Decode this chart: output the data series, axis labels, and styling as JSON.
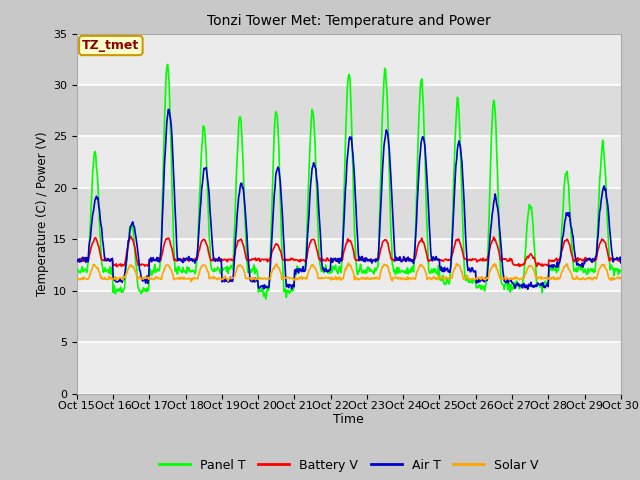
{
  "title": "Tonzi Tower Met: Temperature and Power",
  "xlabel": "Time",
  "ylabel": "Temperature (C) / Power (V)",
  "ylim": [
    0,
    35
  ],
  "yticks": [
    0,
    5,
    10,
    15,
    20,
    25,
    30,
    35
  ],
  "x_tick_labels": [
    "Oct 15",
    "Oct 16",
    "Oct 17",
    "Oct 18",
    "Oct 19",
    "Oct 20",
    "Oct 21",
    "Oct 22",
    "Oct 23",
    "Oct 24",
    "Oct 25",
    "Oct 26",
    "Oct 27",
    "Oct 28",
    "Oct 29",
    "Oct 30"
  ],
  "annotation_text": "TZ_tmet",
  "annotation_color": "#8B0000",
  "annotation_bg": "#FFFFCC",
  "annotation_edge": "#CC9900",
  "fig_bg": "#C8C8C8",
  "plot_bg": "#DCDCDC",
  "grid_color": "#F0F0F0",
  "line_colors": {
    "panel_t": "#00FF00",
    "battery_v": "#FF0000",
    "air_t": "#0000CD",
    "solar_v": "#FFA500"
  },
  "legend_labels": [
    "Panel T",
    "Battery V",
    "Air T",
    "Solar V"
  ],
  "n_points": 720,
  "days": 15
}
